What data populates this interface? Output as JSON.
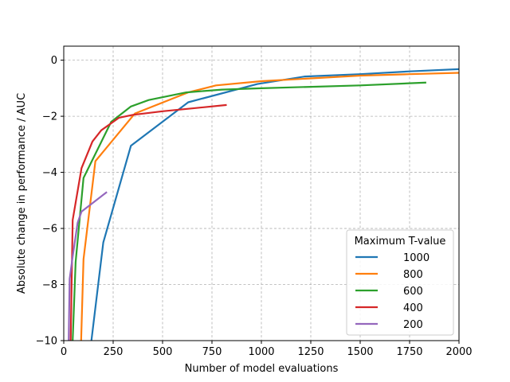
{
  "chart_data": {
    "type": "line",
    "xlabel": "Number of model evaluations",
    "ylabel": "Absolute change in performance / AUC",
    "xlim": [
      0,
      2000
    ],
    "ylim": [
      -10,
      0.5
    ],
    "xticks": [
      0,
      250,
      500,
      750,
      1000,
      1250,
      1500,
      1750,
      2000
    ],
    "xtick_labels": [
      "0",
      "250",
      "500",
      "750",
      "1000",
      "1250",
      "1500",
      "1750",
      "2000"
    ],
    "yticks": [
      0,
      -2,
      -4,
      -6,
      -8,
      -10
    ],
    "ytick_labels": [
      "0",
      "−2",
      "−4",
      "−6",
      "−8",
      "−10"
    ],
    "grid": true,
    "legend_title": "Maximum T-value",
    "legend_position": "lower-right",
    "series": [
      {
        "name": "1000",
        "color": "#1f77b4",
        "x": [
          140,
          200,
          340,
          630,
          980,
          1220,
          1500,
          1750,
          2000
        ],
        "y": [
          -10,
          -6.5,
          -3.05,
          -1.5,
          -0.85,
          -0.58,
          -0.5,
          -0.4,
          -0.32
        ]
      },
      {
        "name": "800",
        "color": "#ff7f0e",
        "x": [
          88,
          100,
          160,
          360,
          630,
          770,
          1000,
          1250,
          1500,
          1750,
          2000
        ],
        "y": [
          -10,
          -7.1,
          -3.6,
          -1.9,
          -1.15,
          -0.9,
          -0.75,
          -0.65,
          -0.55,
          -0.5,
          -0.45
        ]
      },
      {
        "name": "600",
        "color": "#2ca02c",
        "x": [
          45,
          60,
          100,
          240,
          340,
          430,
          620,
          800,
          1000,
          1250,
          1500,
          1830
        ],
        "y": [
          -10,
          -7.2,
          -4.2,
          -2.2,
          -1.65,
          -1.42,
          -1.15,
          -1.05,
          -1.0,
          -0.95,
          -0.9,
          -0.8
        ]
      },
      {
        "name": "400",
        "color": "#d62728",
        "x": [
          35,
          45,
          90,
          145,
          190,
          280,
          350,
          500,
          650,
          820
        ],
        "y": [
          -10,
          -5.7,
          -3.85,
          -2.9,
          -2.5,
          -2.05,
          -1.95,
          -1.82,
          -1.72,
          -1.6
        ]
      },
      {
        "name": "200",
        "color": "#9467bd",
        "x": [
          25,
          30,
          45,
          70,
          90,
          215
        ],
        "y": [
          -10,
          -7.8,
          -7.0,
          -5.8,
          -5.4,
          -4.72
        ]
      }
    ]
  }
}
